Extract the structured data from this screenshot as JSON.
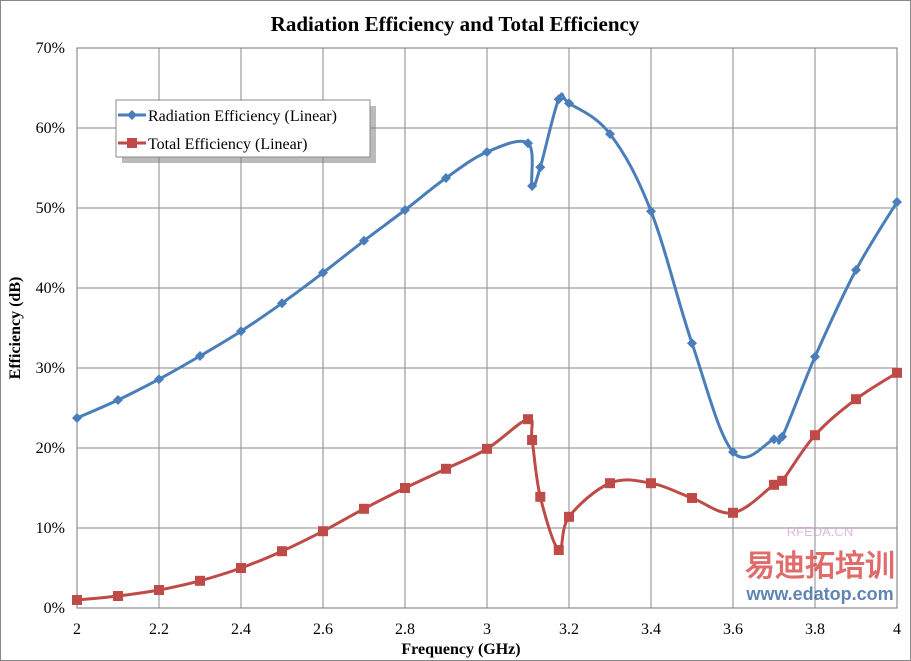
{
  "chart_data": {
    "type": "line",
    "title": "Radiation Efficiency and Total Efficiency",
    "xlabel": "Frequency (GHz)",
    "ylabel": "Efficiency (dB)",
    "xlim": [
      2,
      4
    ],
    "ylim": [
      0,
      70
    ],
    "x_ticks": [
      "2",
      "2.2",
      "2.4",
      "2.6",
      "2.8",
      "3",
      "3.2",
      "3.4",
      "3.6",
      "3.8",
      "4"
    ],
    "x_tick_values": [
      2,
      2.2,
      2.4,
      2.6,
      2.8,
      3,
      3.2,
      3.4,
      3.6,
      3.8,
      4
    ],
    "y_ticks": [
      "0%",
      "10%",
      "20%",
      "30%",
      "40%",
      "50%",
      "60%",
      "70%"
    ],
    "y_tick_values": [
      0,
      10,
      20,
      30,
      40,
      50,
      60,
      70
    ],
    "grid": true,
    "legend_position": "top-left",
    "series": [
      {
        "name": "Radiation Efficiency (Linear)",
        "color": "#4a7ebb",
        "marker": "diamond",
        "x": [
          2,
          2.1,
          2.2,
          2.3,
          2.4,
          2.5,
          2.6,
          2.7,
          2.8,
          2.9,
          3.0,
          3.1,
          3.11,
          3.13,
          3.175,
          3.2,
          3.3,
          3.4,
          3.5,
          3.6,
          3.7,
          3.72,
          3.8,
          3.9,
          4.0
        ],
        "values": [
          23.75,
          26,
          28.6,
          31.5,
          34.6,
          38.1,
          41.9,
          45.9,
          49.75,
          53.75,
          57,
          58.1,
          52.75,
          55.1,
          63.6,
          63.1,
          59.25,
          49.6,
          33.1,
          19.5,
          21.1,
          21.4,
          31.4,
          42.25,
          50.75
        ]
      },
      {
        "name": "Total Efficiency (Linear)",
        "color": "#be4b48",
        "marker": "square",
        "x": [
          2,
          2.1,
          2.2,
          2.3,
          2.4,
          2.5,
          2.6,
          2.7,
          2.8,
          2.9,
          3.0,
          3.1,
          3.11,
          3.13,
          3.175,
          3.2,
          3.3,
          3.4,
          3.5,
          3.6,
          3.7,
          3.72,
          3.8,
          3.9,
          4.0
        ],
        "values": [
          1,
          1.5,
          2.25,
          3.4,
          5,
          7.1,
          9.6,
          12.4,
          15,
          17.4,
          19.9,
          23.6,
          21,
          13.9,
          7.25,
          11.4,
          15.6,
          15.6,
          13.75,
          11.9,
          15.4,
          15.9,
          21.6,
          26.1,
          29.4
        ]
      }
    ]
  },
  "watermark": {
    "site": "RFEDA.CN",
    "brand": "易迪拓培训",
    "url": "www.edatop.com"
  }
}
